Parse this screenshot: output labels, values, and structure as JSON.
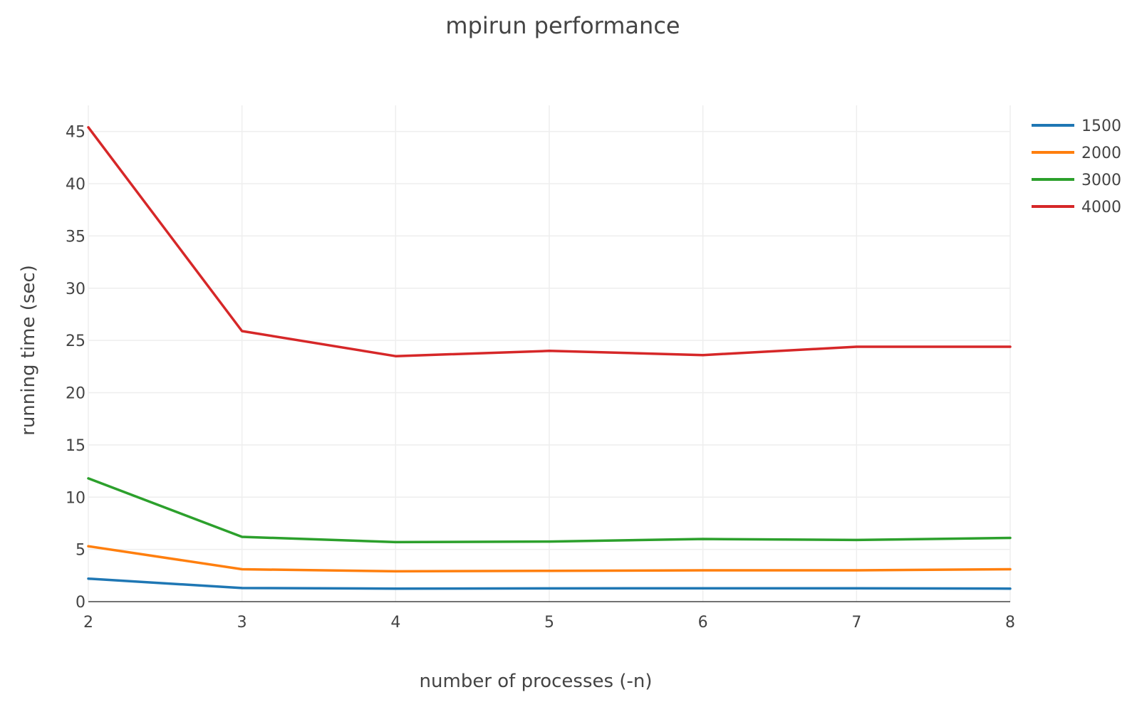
{
  "chart_data": {
    "type": "line",
    "title": "mpirun performance",
    "xlabel": "number of processes (-n)",
    "ylabel": "running time (sec)",
    "x": [
      2,
      3,
      4,
      5,
      6,
      7,
      8
    ],
    "xlim": [
      2,
      8
    ],
    "ylim": [
      0,
      47.5
    ],
    "xticks": [
      2,
      3,
      4,
      5,
      6,
      7,
      8
    ],
    "yticks": [
      0,
      5,
      10,
      15,
      20,
      25,
      30,
      35,
      40,
      45
    ],
    "grid": true,
    "legend_position": "top-right",
    "series": [
      {
        "name": "1500",
        "color": "#1f77b4",
        "values": [
          2.2,
          1.3,
          1.25,
          1.27,
          1.28,
          1.28,
          1.25
        ]
      },
      {
        "name": "2000",
        "color": "#ff7f0e",
        "values": [
          5.3,
          3.1,
          2.9,
          2.95,
          3.0,
          3.0,
          3.1
        ]
      },
      {
        "name": "3000",
        "color": "#2ca02c",
        "values": [
          11.8,
          6.2,
          5.7,
          5.75,
          6.0,
          5.9,
          6.1
        ]
      },
      {
        "name": "4000",
        "color": "#d62728",
        "values": [
          45.4,
          25.9,
          23.5,
          24.0,
          23.6,
          24.4,
          24.4
        ]
      }
    ]
  }
}
